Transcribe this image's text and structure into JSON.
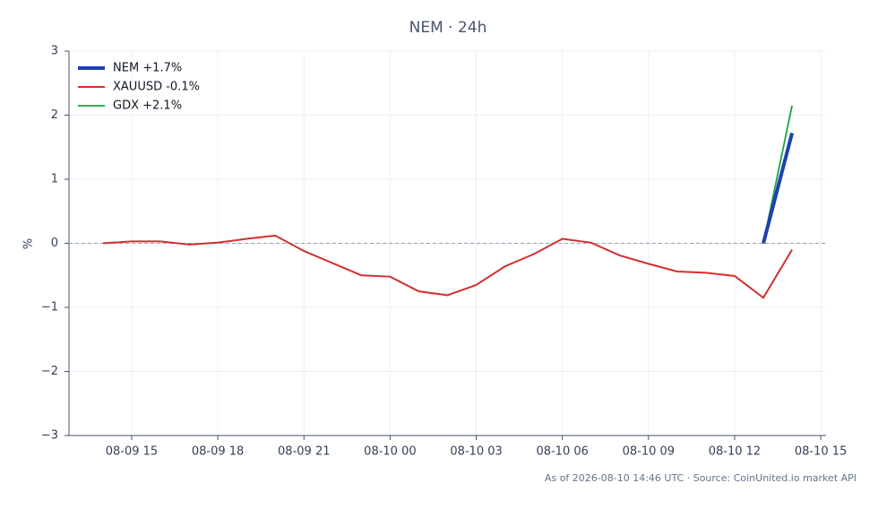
{
  "chart_data": {
    "type": "line",
    "title": "NEM · 24h",
    "ylabel": "%",
    "x": [
      "08-09 14",
      "08-09 15",
      "08-09 16",
      "08-09 17",
      "08-09 18",
      "08-09 19",
      "08-09 20",
      "08-09 21",
      "08-09 22",
      "08-09 23",
      "08-10 00",
      "08-10 01",
      "08-10 02",
      "08-10 03",
      "08-10 04",
      "08-10 05",
      "08-10 06",
      "08-10 07",
      "08-10 08",
      "08-10 09",
      "08-10 10",
      "08-10 11",
      "08-10 12",
      "08-10 13",
      "08-10 14"
    ],
    "series": [
      {
        "name": "NEM +1.7%",
        "color": "#1e40af",
        "width": 4,
        "values": [
          null,
          null,
          null,
          null,
          null,
          null,
          null,
          null,
          null,
          null,
          null,
          null,
          null,
          null,
          null,
          null,
          null,
          null,
          null,
          null,
          null,
          null,
          null,
          0,
          1.72
        ]
      },
      {
        "name": "XAUUSD -0.1%",
        "color": "#d32f2f",
        "width": 2,
        "values": [
          0,
          0.03,
          0.03,
          -0.02,
          0.01,
          0.07,
          0.12,
          -0.12,
          -0.31,
          -0.5,
          -0.52,
          -0.75,
          -0.81,
          -0.65,
          -0.36,
          -0.17,
          0.07,
          0.01,
          -0.19,
          -0.32,
          -0.44,
          -0.46,
          -0.51,
          -0.85,
          -0.1
        ]
      },
      {
        "name": "GDX +2.1%",
        "color": "#16a34a",
        "width": 1.8,
        "values": [
          null,
          null,
          null,
          null,
          null,
          null,
          null,
          null,
          null,
          null,
          null,
          null,
          null,
          null,
          null,
          null,
          null,
          null,
          null,
          null,
          null,
          null,
          null,
          0,
          2.15
        ]
      }
    ],
    "xlim": [
      "08-09 12:49",
      "08-10 15:11"
    ],
    "xticks": [
      "08-09 15",
      "08-09 18",
      "08-09 21",
      "08-10 00",
      "08-10 03",
      "08-10 06",
      "08-10 09",
      "08-10 12",
      "08-10 15"
    ],
    "ylim": [
      -3,
      3
    ],
    "yticks": [
      {
        "value": -3,
        "label": "−3"
      },
      {
        "value": -2,
        "label": "−2"
      },
      {
        "value": -1,
        "label": "−1"
      },
      0,
      1,
      2,
      3
    ],
    "grid": true,
    "zero_line": true,
    "legend": "upper left",
    "footnote": "As of 2026-08-10 14:46 UTC · Source: CoinUnited.io market API"
  }
}
